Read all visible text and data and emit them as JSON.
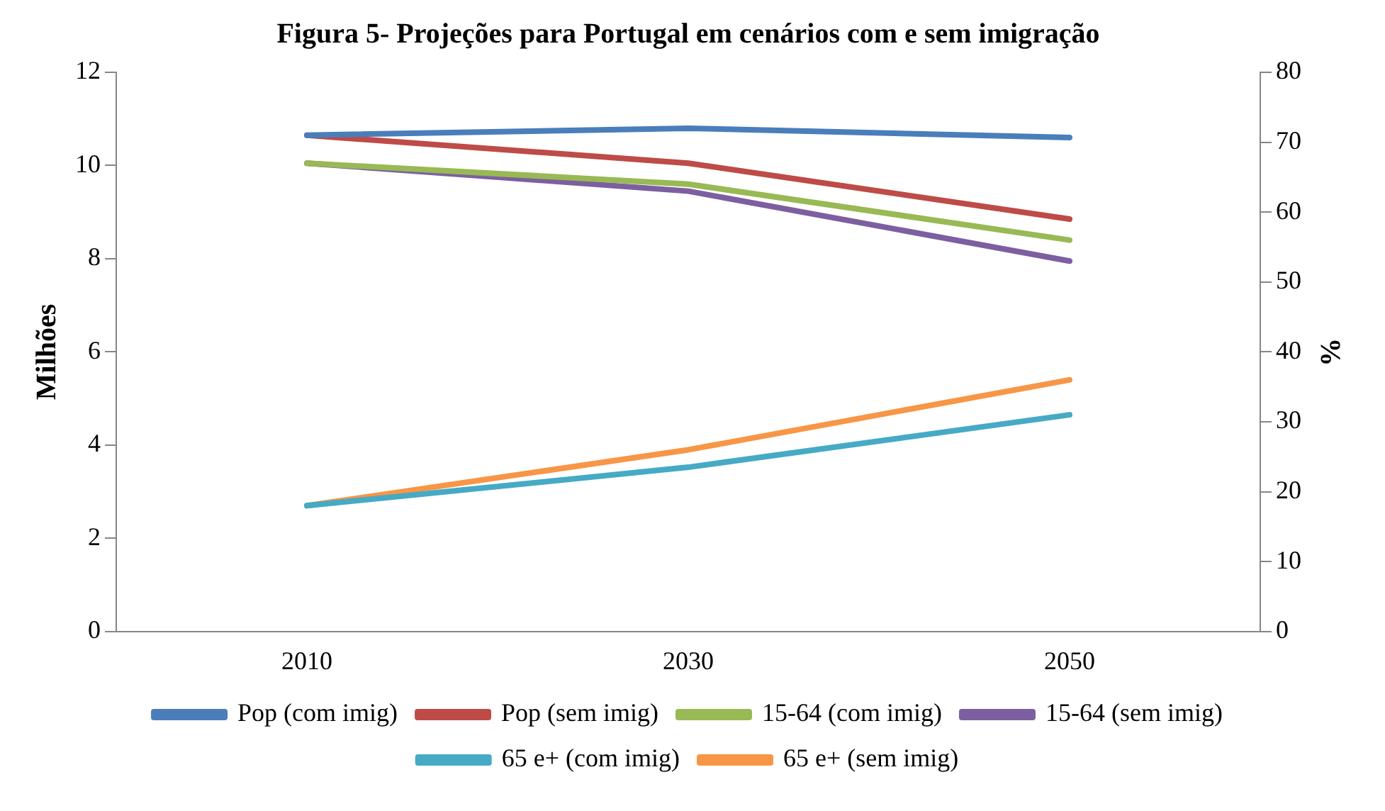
{
  "chart_data": {
    "type": "line",
    "title": "Figura 5- Projeções para Portugal em cenários com e sem imigração",
    "ylabel": "Milhões",
    "y2label": "%",
    "categories": [
      "2010",
      "2030",
      "2050"
    ],
    "series": [
      {
        "name": "Pop (com imig)",
        "color": "#4a7ebb",
        "values": [
          10.65,
          10.8,
          10.6
        ]
      },
      {
        "name": "Pop (sem imig)",
        "color": "#be4b48",
        "values": [
          10.65,
          10.05,
          8.85
        ]
      },
      {
        "name": "15-64 (com imig)",
        "color": "#98b954",
        "values": [
          67,
          64,
          56
        ],
        "axis": "y2"
      },
      {
        "name": "15-64 (sem imig)",
        "color": "#7d5fa0",
        "values": [
          67,
          63,
          53
        ],
        "axis": "y2"
      },
      {
        "name": "65 e+ (com imig)",
        "color": "#46aac5",
        "values": [
          18,
          23.5,
          31
        ],
        "axis": "y2"
      },
      {
        "name": "65 e+ (sem imig)",
        "color": "#f79646",
        "values": [
          18,
          26,
          36
        ],
        "axis": "y2"
      }
    ],
    "ylim": [
      0,
      12
    ],
    "yticks": [
      0,
      2,
      4,
      6,
      8,
      10,
      12
    ],
    "y2lim": [
      0,
      80
    ],
    "y2ticks": [
      0,
      10,
      20,
      30,
      40,
      50,
      60,
      70,
      80
    ],
    "grid": false,
    "legend": "bottom",
    "marker": "none",
    "line_style": "solid"
  }
}
